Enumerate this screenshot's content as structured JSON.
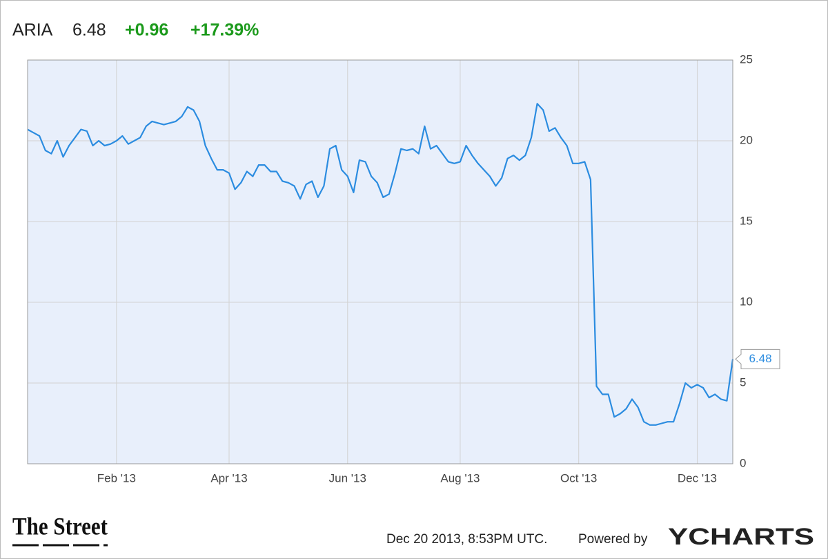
{
  "chart_data": {
    "type": "line",
    "header": {
      "ticker": "ARIA",
      "price": "6.48",
      "change": "+0.96",
      "change_percent": "+17.39%"
    },
    "categories": [
      null,
      null,
      null,
      null,
      null,
      null,
      null,
      null,
      null,
      null,
      null,
      null,
      null,
      null,
      null,
      "Feb '13",
      null,
      null,
      null,
      null,
      null,
      null,
      null,
      null,
      null,
      null,
      null,
      null,
      null,
      null,
      null,
      null,
      null,
      null,
      "Apr '13",
      null,
      null,
      null,
      null,
      null,
      null,
      null,
      null,
      null,
      null,
      null,
      null,
      null,
      null,
      null,
      null,
      null,
      null,
      null,
      "Jun '13",
      null,
      null,
      null,
      null,
      null,
      null,
      null,
      null,
      null,
      null,
      null,
      null,
      null,
      null,
      null,
      null,
      null,
      null,
      "Aug '13",
      null,
      null,
      null,
      null,
      null,
      null,
      null,
      null,
      null,
      null,
      null,
      null,
      null,
      null,
      null,
      null,
      null,
      null,
      null,
      "Oct '13",
      null,
      null,
      null,
      null,
      null,
      null,
      null,
      null,
      null,
      null,
      null,
      null,
      null,
      null,
      null,
      null,
      null,
      null,
      null,
      "Dec '13",
      null,
      null,
      null,
      null,
      null,
      null
    ],
    "values": [
      20.7,
      20.5,
      20.3,
      19.4,
      19.2,
      20.0,
      19.0,
      19.7,
      20.2,
      20.7,
      20.6,
      19.7,
      20.0,
      19.7,
      19.8,
      20.0,
      20.3,
      19.8,
      20.0,
      20.2,
      20.9,
      21.2,
      21.1,
      21.0,
      21.1,
      21.2,
      21.5,
      22.1,
      21.9,
      21.2,
      19.7,
      18.9,
      18.2,
      18.2,
      18.0,
      17.0,
      17.4,
      18.1,
      17.8,
      18.5,
      18.5,
      18.1,
      18.1,
      17.5,
      17.4,
      17.2,
      16.4,
      17.3,
      17.5,
      16.5,
      17.2,
      19.5,
      19.7,
      18.2,
      17.8,
      16.8,
      18.8,
      18.7,
      17.8,
      17.4,
      16.5,
      16.7,
      18.0,
      19.5,
      19.4,
      19.5,
      19.2,
      20.9,
      19.5,
      19.7,
      19.2,
      18.7,
      18.6,
      18.7,
      19.7,
      19.1,
      18.6,
      18.2,
      17.8,
      17.2,
      17.7,
      18.9,
      19.1,
      18.8,
      19.1,
      20.2,
      22.3,
      21.9,
      20.6,
      20.8,
      20.2,
      19.7,
      18.6,
      18.6,
      18.7,
      17.6,
      4.8,
      4.3,
      4.3,
      2.9,
      3.1,
      3.4,
      4.0,
      3.5,
      2.6,
      2.4,
      2.4,
      2.5,
      2.6,
      2.6,
      3.7,
      5.0,
      4.7,
      4.9,
      4.7,
      4.1,
      4.3,
      4.0,
      3.9,
      6.48
    ],
    "color": "#2b8ce0",
    "ylim": [
      0,
      25
    ],
    "yticks": [
      0,
      5,
      10,
      15,
      20,
      25
    ],
    "grid": true,
    "footer": {
      "brand": "The Street",
      "timestamp": "Dec 20 2013, 8:53PM UTC.",
      "powered_by": "Powered by",
      "provider": "YCHARTS"
    }
  }
}
